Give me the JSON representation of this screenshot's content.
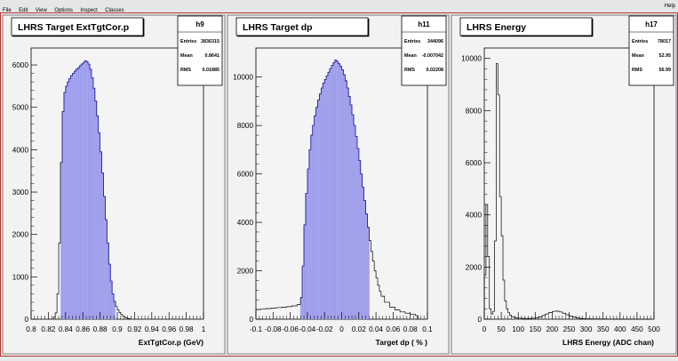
{
  "menu": {
    "items": [
      "File",
      "Edit",
      "View",
      "Options",
      "Inspect",
      "Classes"
    ],
    "help": "Help"
  },
  "chart_data": [
    {
      "type": "bar",
      "title": "LHRS Target ExtTgtCor.p",
      "stats": {
        "name": "h9",
        "rows": [
          [
            "Entries",
            "3836315"
          ],
          [
            "Mean",
            "0.8641"
          ],
          [
            "RMS",
            "0.01885"
          ]
        ]
      },
      "xlabel": "ExtTgtCor.p (GeV)",
      "ylabel": "",
      "xlim": [
        0.8,
        1.0
      ],
      "ylim": [
        0,
        6400
      ],
      "xticks": [
        0.8,
        0.82,
        0.84,
        0.86,
        0.88,
        0.9,
        0.92,
        0.94,
        0.96,
        0.98,
        1.0
      ],
      "xtick_labels": [
        "0.8",
        "0.82",
        "0.84",
        "0.86",
        "0.88",
        "0.9",
        "0.92",
        "0.94",
        "0.96",
        "0.98",
        "1"
      ],
      "yticks": [
        0,
        1000,
        2000,
        3000,
        4000,
        5000,
        6000
      ],
      "ytick_labels": [
        "0",
        "1000",
        "2000",
        "3000",
        "4000",
        "5000",
        "6000"
      ],
      "fill_range": [
        0.8345,
        0.8975
      ],
      "fill_color": "#a6a6ee",
      "line_color": "#2c2cb4",
      "histogram": {
        "x": [
          0.826,
          0.828,
          0.83,
          0.832,
          0.834,
          0.836,
          0.838,
          0.84,
          0.842,
          0.844,
          0.846,
          0.848,
          0.85,
          0.852,
          0.854,
          0.856,
          0.858,
          0.86,
          0.862,
          0.864,
          0.866,
          0.868,
          0.87,
          0.872,
          0.874,
          0.876,
          0.878,
          0.88,
          0.882,
          0.884,
          0.886,
          0.888,
          0.89,
          0.892,
          0.894,
          0.896,
          0.898,
          0.9,
          0.902,
          0.904,
          0.906,
          0.908,
          0.91,
          0.912,
          0.914
        ],
        "values": [
          50,
          150,
          600,
          1800,
          3700,
          4900,
          5350,
          5500,
          5600,
          5680,
          5750,
          5800,
          5850,
          5900,
          5930,
          5980,
          6020,
          6050,
          6100,
          6080,
          6020,
          5900,
          5700,
          5450,
          5150,
          4800,
          4400,
          3950,
          3450,
          2900,
          2350,
          1800,
          1300,
          900,
          600,
          420,
          300,
          220,
          160,
          110,
          75,
          50,
          30,
          15,
          5
        ]
      }
    },
    {
      "type": "bar",
      "title": "LHRS Target dp",
      "stats": {
        "name": "h11",
        "rows": [
          [
            "Entries",
            "344096"
          ],
          [
            "Mean",
            "-0.007042"
          ],
          [
            "RMS",
            "0.02208"
          ]
        ]
      },
      "xlabel": "Target dp ( % )",
      "ylabel": "",
      "xlim": [
        -0.1,
        0.1
      ],
      "ylim": [
        0,
        11200
      ],
      "xticks": [
        -0.1,
        -0.08,
        -0.06,
        -0.04,
        -0.02,
        0,
        0.02,
        0.04,
        0.06,
        0.08,
        0.1
      ],
      "xtick_labels": [
        "-0.1",
        "-0.08",
        "-0.06",
        "-0.04",
        "-0.02",
        "0",
        "0.02",
        "0.04",
        "0.06",
        "0.08",
        "0.1"
      ],
      "yticks": [
        0,
        2000,
        4000,
        6000,
        8000,
        10000
      ],
      "ytick_labels": [
        "0",
        "2000",
        "4000",
        "6000",
        "8000",
        "10000"
      ],
      "fill_range": [
        -0.048,
        0.032
      ],
      "fill_color": "#a6a6ee",
      "line_color": "#2c2cb4",
      "histogram": {
        "x": [
          -0.1,
          -0.094,
          -0.088,
          -0.082,
          -0.076,
          -0.07,
          -0.064,
          -0.058,
          -0.052,
          -0.048,
          -0.046,
          -0.044,
          -0.042,
          -0.04,
          -0.038,
          -0.036,
          -0.034,
          -0.032,
          -0.03,
          -0.028,
          -0.026,
          -0.024,
          -0.022,
          -0.02,
          -0.018,
          -0.016,
          -0.014,
          -0.012,
          -0.01,
          -0.008,
          -0.006,
          -0.004,
          -0.002,
          0,
          0.002,
          0.004,
          0.006,
          0.008,
          0.01,
          0.012,
          0.014,
          0.016,
          0.018,
          0.02,
          0.022,
          0.024,
          0.026,
          0.028,
          0.03,
          0.032,
          0.034,
          0.036,
          0.038,
          0.04,
          0.042,
          0.044,
          0.046,
          0.05,
          0.056,
          0.062,
          0.068,
          0.074,
          0.08,
          0.086
        ],
        "values": [
          400,
          420,
          440,
          460,
          480,
          500,
          520,
          550,
          600,
          900,
          2200,
          3900,
          5200,
          6200,
          7000,
          7600,
          8000,
          8400,
          8750,
          9050,
          9300,
          9550,
          9750,
          9900,
          10050,
          10200,
          10350,
          10480,
          10600,
          10700,
          10650,
          10550,
          10450,
          10300,
          10100,
          9850,
          9550,
          9200,
          8850,
          8450,
          8000,
          7550,
          7050,
          6550,
          6000,
          5450,
          4900,
          4350,
          3800,
          3250,
          2800,
          2400,
          2000,
          1700,
          1400,
          1150,
          950,
          700,
          500,
          380,
          300,
          250,
          200,
          150
        ]
      }
    },
    {
      "type": "bar",
      "title": "LHRS Energy",
      "stats": {
        "name": "h17",
        "rows": [
          [
            "Entries",
            "78017"
          ],
          [
            "Mean",
            "52.95"
          ],
          [
            "RMS",
            "56.99"
          ]
        ]
      },
      "xlabel": "LHRS Energy (ADC chan)",
      "ylabel": "",
      "xlim": [
        0,
        500
      ],
      "ylim": [
        0,
        10400
      ],
      "xticks": [
        0,
        50,
        100,
        150,
        200,
        250,
        300,
        350,
        400,
        450,
        500
      ],
      "xtick_labels": [
        "0",
        "50",
        "100",
        "150",
        "200",
        "250",
        "300",
        "350",
        "400",
        "450",
        "500"
      ],
      "yticks": [
        0,
        2000,
        4000,
        6000,
        8000,
        10000
      ],
      "ytick_labels": [
        "0",
        "2000",
        "4000",
        "6000",
        "8000",
        "10000"
      ],
      "fill_range": null,
      "line_color": "#000000",
      "histogram": {
        "x": [
          0,
          5,
          10,
          15,
          20,
          25,
          30,
          35,
          40,
          45,
          50,
          55,
          60,
          65,
          70,
          75,
          80,
          85,
          90,
          95,
          100,
          110,
          120,
          130,
          140,
          150,
          160,
          170,
          180,
          190,
          200,
          210,
          220,
          230,
          240,
          250,
          260,
          270,
          280,
          290,
          300,
          320,
          340,
          360,
          380,
          400,
          420,
          440,
          460,
          480
        ],
        "values": [
          1700,
          4400,
          2400,
          400,
          200,
          300,
          3000,
          9800,
          8600,
          4700,
          3200,
          1500,
          700,
          400,
          250,
          150,
          100,
          80,
          60,
          50,
          40,
          30,
          25,
          30,
          40,
          60,
          90,
          140,
          200,
          260,
          300,
          310,
          280,
          230,
          170,
          120,
          80,
          50,
          30,
          20,
          15,
          10,
          8,
          6,
          5,
          4,
          3,
          2,
          2,
          1
        ]
      }
    }
  ]
}
